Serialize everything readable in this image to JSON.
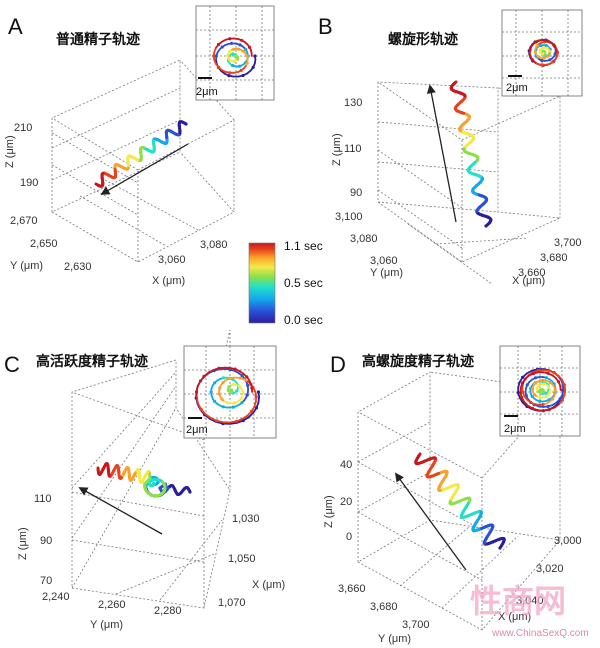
{
  "time_colors": [
    "#2b1d9e",
    "#2a52d8",
    "#14a9ea",
    "#22e0c8",
    "#8ee04a",
    "#f6e84a",
    "#f8a22a",
    "#e8421e",
    "#c8181c"
  ],
  "colorbar": {
    "labels": [
      "1.1 sec",
      "0.5 sec",
      "0.0 sec"
    ]
  },
  "panels": {
    "A": {
      "letter": "A",
      "title": "普通精子轨迹",
      "z_label": "Z (μm)",
      "z_ticks": [
        "210",
        "190"
      ],
      "y_label": "Y (μm)",
      "y_ticks": [
        "2,670",
        "2,650",
        "2,630"
      ],
      "x_label": "X (μm)",
      "x_ticks": [
        "3,080",
        "3,060"
      ],
      "inset_scale": "2μm"
    },
    "B": {
      "letter": "B",
      "title": "螺旋形轨迹",
      "z_label": "Z (μm)",
      "z_ticks": [
        "130",
        "110",
        "90"
      ],
      "y_label": "Y (μm)",
      "y_ticks": [
        "3,100",
        "3,080",
        "3,060"
      ],
      "x_label": "X (μm)",
      "x_ticks": [
        "3,700",
        "3,680",
        "3,660"
      ],
      "inset_scale": "2μm"
    },
    "C": {
      "letter": "C",
      "title": "高活跃度精子轨迹",
      "z_label": "Z (μm)",
      "z_ticks": [
        "110",
        "90",
        "70"
      ],
      "y_label": "Y (μm)",
      "y_ticks": [
        "2,240",
        "2,260",
        "2,280"
      ],
      "x_label": "X (μm)",
      "x_ticks": [
        "1,030",
        "1,050",
        "1,070"
      ],
      "inset_scale": "2μm"
    },
    "D": {
      "letter": "D",
      "title": "高螺旋度精子轨迹",
      "z_label": "Z (μm)",
      "z_ticks": [
        "40",
        "20",
        "0"
      ],
      "y_label": "Y (μm)",
      "y_ticks": [
        "3,660",
        "3,680",
        "3,700"
      ],
      "x_label": "X (μm)",
      "x_ticks": [
        "3,000",
        "3,020",
        "3,040"
      ],
      "inset_scale": "2μm"
    }
  },
  "watermark": {
    "main": "性商网",
    "url": "www.ChinaSexQ.com"
  }
}
